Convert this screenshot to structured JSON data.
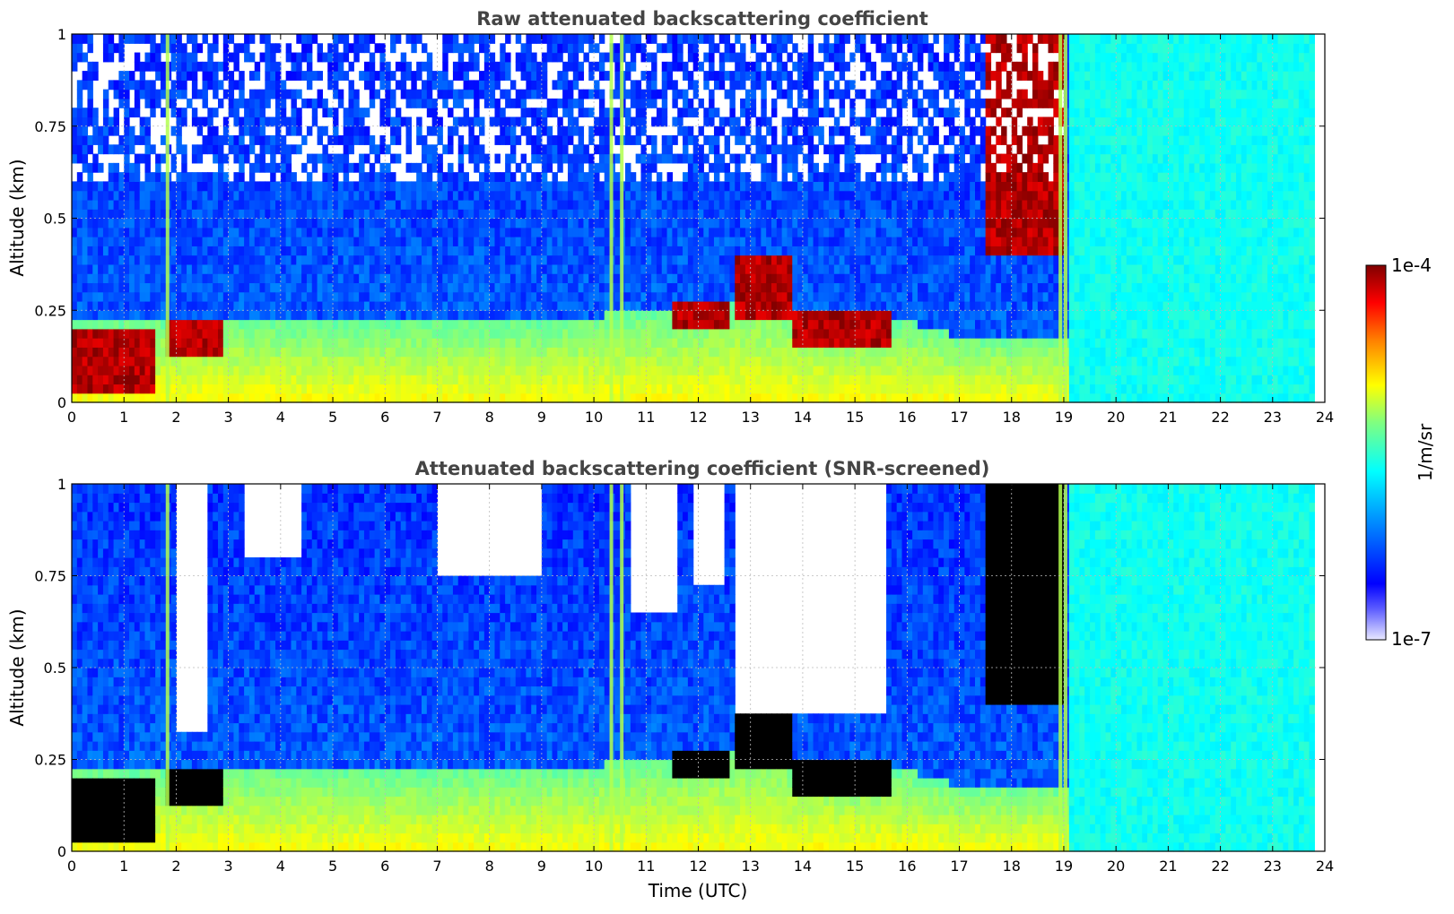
{
  "colors": {
    "colormap": [
      "#e8e8ff",
      "#0000ff",
      "#0080ff",
      "#00ffff",
      "#80ff80",
      "#ffff00",
      "#ff8000",
      "#ff0000",
      "#800000"
    ],
    "saturated_screened": "#000000",
    "grid": "#bbbbbb",
    "title_text": "#444444"
  },
  "colorbar": {
    "label": "1/m/sr",
    "max_label": "1e-4",
    "min_label": "1e-7",
    "scale": "log",
    "range": [
      1e-07,
      0.0001
    ]
  },
  "chart_data": [
    {
      "type": "heatmap",
      "title": "Raw attenuated backscattering coefficient",
      "xlabel": "",
      "ylabel": "Altitude (km)",
      "xlim": [
        0,
        24
      ],
      "ylim": [
        0,
        1
      ],
      "xticks": [
        "0",
        "1",
        "2",
        "3",
        "4",
        "5",
        "6",
        "7",
        "8",
        "9",
        "10",
        "11",
        "12",
        "13",
        "14",
        "15",
        "16",
        "17",
        "18",
        "19",
        "20",
        "21",
        "22",
        "23",
        "24"
      ],
      "yticks": [
        "0",
        "0.25",
        "0.5",
        "0.75",
        "1"
      ],
      "grid": true,
      "screened": false,
      "boundary_layer_top_km": [
        {
          "t": 0,
          "z": 0.22
        },
        {
          "t": 1,
          "z": 0.22
        },
        {
          "t": 2,
          "z": 0.23
        },
        {
          "t": 3,
          "z": 0.23
        },
        {
          "t": 4,
          "z": 0.22
        },
        {
          "t": 6,
          "z": 0.22
        },
        {
          "t": 9,
          "z": 0.22
        },
        {
          "t": 11,
          "z": 0.25
        },
        {
          "t": 12,
          "z": 0.25
        },
        {
          "t": 13,
          "z": 0.3
        },
        {
          "t": 14,
          "z": 0.25
        },
        {
          "t": 15,
          "z": 0.22
        },
        {
          "t": 16,
          "z": 0.22
        },
        {
          "t": 17,
          "z": 0.18
        }
      ],
      "aerosol_features": [
        {
          "t_start": 0.0,
          "t_end": 1.6,
          "z_bottom": 0.03,
          "z_top": 0.19,
          "level": "high"
        },
        {
          "t_start": 1.8,
          "t_end": 2.9,
          "z_bottom": 0.12,
          "z_top": 0.23,
          "level": "high"
        },
        {
          "t_start": 11.5,
          "t_end": 12.6,
          "z_bottom": 0.2,
          "z_top": 0.27,
          "level": "high"
        },
        {
          "t_start": 12.7,
          "t_end": 13.8,
          "z_bottom": 0.22,
          "z_top": 0.4,
          "level": "high"
        },
        {
          "t_start": 13.8,
          "t_end": 15.7,
          "z_bottom": 0.14,
          "z_top": 0.25,
          "level": "high"
        },
        {
          "t_start": 17.5,
          "t_end": 19.0,
          "z_bottom": 0.4,
          "z_top": 1.0,
          "level": "high"
        }
      ],
      "vertical_streaks_utc": [
        1.8,
        10.3,
        10.5,
        18.9,
        19.0
      ]
    },
    {
      "type": "heatmap",
      "title": "Attenuated backscattering coefficient (SNR-screened)",
      "xlabel": "Time (UTC)",
      "ylabel": "Altitude (km)",
      "xlim": [
        0,
        24
      ],
      "ylim": [
        0,
        1
      ],
      "xticks": [
        "0",
        "1",
        "2",
        "3",
        "4",
        "5",
        "6",
        "7",
        "8",
        "9",
        "10",
        "11",
        "12",
        "13",
        "14",
        "15",
        "16",
        "17",
        "18",
        "19",
        "20",
        "21",
        "22",
        "23",
        "24"
      ],
      "yticks": [
        "0",
        "0.25",
        "0.5",
        "0.75",
        "1"
      ],
      "grid": true,
      "screened": true,
      "screened_regions": [
        {
          "t_start": 2.0,
          "t_end": 2.6,
          "z_bottom": 0.32,
          "z_top": 1.0
        },
        {
          "t_start": 3.3,
          "t_end": 4.4,
          "z_bottom": 0.8,
          "z_top": 1.0
        },
        {
          "t_start": 7.0,
          "t_end": 9.0,
          "z_bottom": 0.75,
          "z_top": 1.0
        },
        {
          "t_start": 10.7,
          "t_end": 11.6,
          "z_bottom": 0.65,
          "z_top": 1.0
        },
        {
          "t_start": 11.9,
          "t_end": 12.5,
          "z_bottom": 0.72,
          "z_top": 1.0
        },
        {
          "t_start": 12.7,
          "t_end": 15.6,
          "z_bottom": 0.38,
          "z_top": 1.0
        }
      ],
      "aerosol_features": [
        {
          "t_start": 0.0,
          "t_end": 1.6,
          "z_bottom": 0.03,
          "z_top": 0.19,
          "level": "saturated"
        },
        {
          "t_start": 1.8,
          "t_end": 2.9,
          "z_bottom": 0.12,
          "z_top": 0.23,
          "level": "saturated"
        },
        {
          "t_start": 11.5,
          "t_end": 12.6,
          "z_bottom": 0.2,
          "z_top": 0.27,
          "level": "saturated"
        },
        {
          "t_start": 12.7,
          "t_end": 13.8,
          "z_bottom": 0.22,
          "z_top": 0.4,
          "level": "saturated"
        },
        {
          "t_start": 13.8,
          "t_end": 15.7,
          "z_bottom": 0.14,
          "z_top": 0.25,
          "level": "saturated"
        },
        {
          "t_start": 17.5,
          "t_end": 19.0,
          "z_bottom": 0.4,
          "z_top": 1.0,
          "level": "saturated"
        }
      ],
      "vertical_streaks_utc": [
        1.8,
        10.3,
        10.5,
        18.9,
        19.0
      ]
    }
  ]
}
